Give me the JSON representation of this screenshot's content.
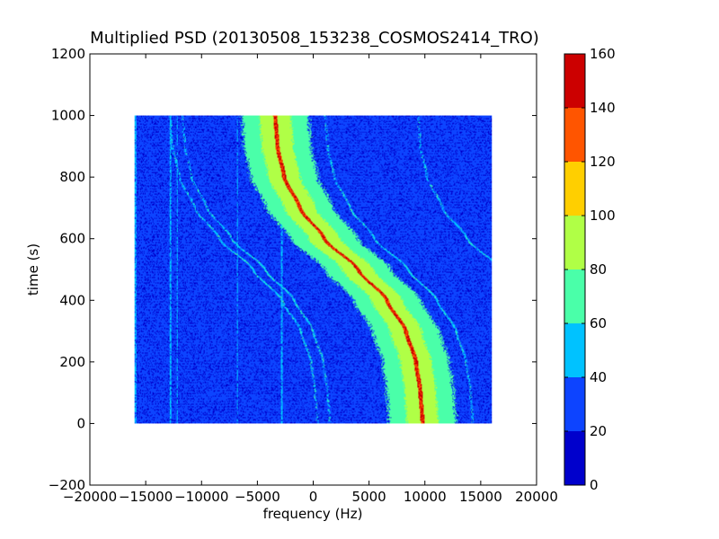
{
  "chart_data": {
    "type": "heatmap",
    "title": "Multiplied PSD (20130508_153238_COSMOS2414_TRO)",
    "xlabel": "frequency (Hz)",
    "ylabel": "time (s)",
    "xlim": [
      -20000,
      20000
    ],
    "ylim": [
      -200,
      1200
    ],
    "x_ticks": [
      -20000,
      -15000,
      -10000,
      -5000,
      0,
      5000,
      10000,
      15000,
      20000
    ],
    "x_tick_labels": [
      "−20000",
      "−15000",
      "−10000",
      "−5000",
      "0",
      "5000",
      "10000",
      "15000",
      "20000"
    ],
    "y_ticks": [
      -200,
      0,
      200,
      400,
      600,
      800,
      1000,
      1200
    ],
    "y_tick_labels": [
      "−200",
      "0",
      "200",
      "400",
      "600",
      "800",
      "1000",
      "1200"
    ],
    "data_extent": {
      "x": [
        -16000,
        16000
      ],
      "y": [
        0,
        1000
      ]
    },
    "grid": false,
    "colorbar": {
      "range": [
        0,
        160
      ],
      "bins": [
        {
          "min": 0,
          "max": 20,
          "color": "#0000cc"
        },
        {
          "min": 20,
          "max": 40,
          "color": "#0d44ff"
        },
        {
          "min": 40,
          "max": 60,
          "color": "#00c2ff"
        },
        {
          "min": 60,
          "max": 80,
          "color": "#4affa9"
        },
        {
          "min": 80,
          "max": 100,
          "color": "#b0ff46"
        },
        {
          "min": 100,
          "max": 120,
          "color": "#ffcf00"
        },
        {
          "min": 120,
          "max": 140,
          "color": "#ff5500"
        },
        {
          "min": 140,
          "max": 160,
          "color": "#cc0000"
        }
      ],
      "ticks": [
        0,
        20,
        40,
        60,
        80,
        100,
        120,
        140,
        160
      ],
      "tick_labels": [
        "0",
        "20",
        "40",
        "60",
        "80",
        "100",
        "120",
        "140",
        "160"
      ]
    },
    "features": {
      "main_band_center": [
        {
          "t": 1000,
          "f": -3400
        },
        {
          "t": 900,
          "f": -3200
        },
        {
          "t": 800,
          "f": -2600
        },
        {
          "t": 700,
          "f": -1200
        },
        {
          "t": 600,
          "f": 1000
        },
        {
          "t": 500,
          "f": 4000
        },
        {
          "t": 400,
          "f": 6600
        },
        {
          "t": 300,
          "f": 8300
        },
        {
          "t": 200,
          "f": 9200
        },
        {
          "t": 100,
          "f": 9600
        },
        {
          "t": 0,
          "f": 9800
        }
      ],
      "main_band_halfwidth_hz": 3000,
      "main_band_core_halfwidth_hz": 1400,
      "main_band_value": 70,
      "main_band_core_value": 90,
      "main_band_peak_value": 130,
      "background_value": 25,
      "harmonic_offsets_hz": [
        -9400,
        -8300,
        4500,
        12800
      ],
      "harmonic_value": 50,
      "vertical_lines_hz": [
        -15900,
        -12800,
        -12200,
        -6800,
        -2800
      ],
      "vertical_line_value": 45
    }
  }
}
